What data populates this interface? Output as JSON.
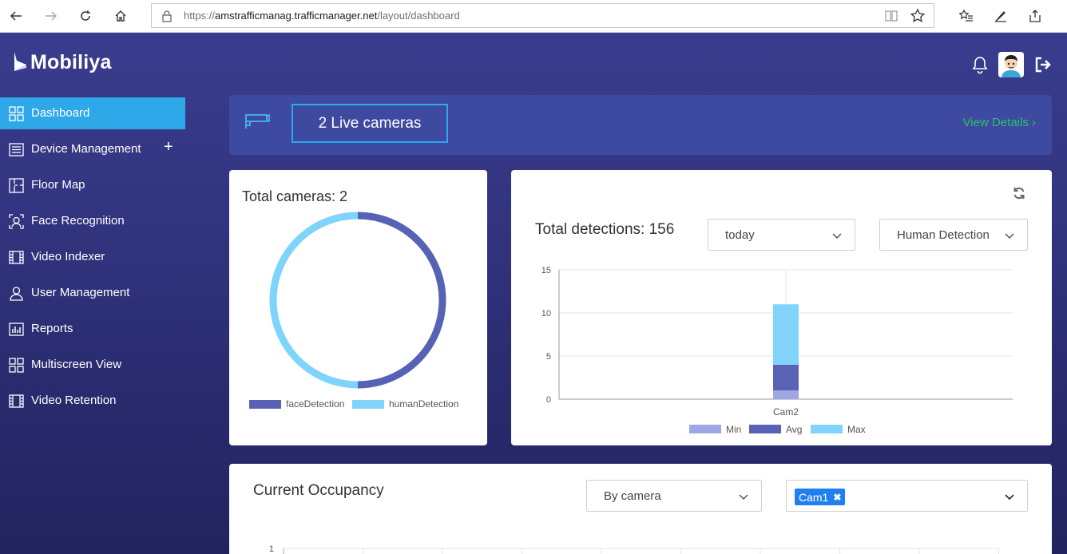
{
  "browser": {
    "url_prefix": "https://",
    "url_host": "amstrafficmanag.trafficmanager.net",
    "url_path": "/layout/dashboard"
  },
  "brand": {
    "name": "Mobiliya"
  },
  "sidebar": {
    "items": [
      {
        "label": "Dashboard",
        "icon": "grid-icon",
        "active": true
      },
      {
        "label": "Device Management",
        "icon": "list-icon",
        "expand": "+"
      },
      {
        "label": "Floor Map",
        "icon": "floor-map-icon"
      },
      {
        "label": "Face Recognition",
        "icon": "face-scan-icon"
      },
      {
        "label": "Video Indexer",
        "icon": "film-icon"
      },
      {
        "label": "User Management",
        "icon": "user-icon"
      },
      {
        "label": "Reports",
        "icon": "bar-report-icon"
      },
      {
        "label": "Multiscreen View",
        "icon": "grid-icon"
      },
      {
        "label": "Video Retention",
        "icon": "film-icon"
      }
    ]
  },
  "banner": {
    "live_cameras": "2 Live cameras",
    "view_details": "View Details"
  },
  "cameras_card": {
    "title": "Total cameras: 2",
    "legend": [
      {
        "name": "faceDetection",
        "color": "#5762b5"
      },
      {
        "name": "humanDetection",
        "color": "#7fd4fb"
      }
    ]
  },
  "detections_card": {
    "title": "Total detections: 156",
    "period_select": "today",
    "type_select": "Human Detection"
  },
  "occupancy_card": {
    "title": "Current Occupancy",
    "group_select": "By camera",
    "camera_chip": "Cam1",
    "chip_remove": "✖",
    "y_tick": "1"
  },
  "chart_data": [
    {
      "type": "pie",
      "labels": [
        "faceDetection",
        "humanDetection"
      ],
      "values": [
        1,
        1
      ],
      "colors": [
        "#5762b5",
        "#7fd4fb"
      ],
      "legend": "bottom"
    },
    {
      "type": "bar",
      "stacked": true,
      "categories": [
        "Cam2"
      ],
      "series": [
        {
          "name": "Min",
          "values": [
            1
          ],
          "color": "#9fa8e6"
        },
        {
          "name": "Avg",
          "values": [
            3
          ],
          "color": "#5a63b3"
        },
        {
          "name": "Max",
          "values": [
            7
          ],
          "color": "#82d3fc"
        }
      ],
      "ylim": [
        0,
        15
      ],
      "yticks": [
        0,
        5,
        10,
        15
      ],
      "grid": true,
      "legend": "bottom"
    }
  ]
}
